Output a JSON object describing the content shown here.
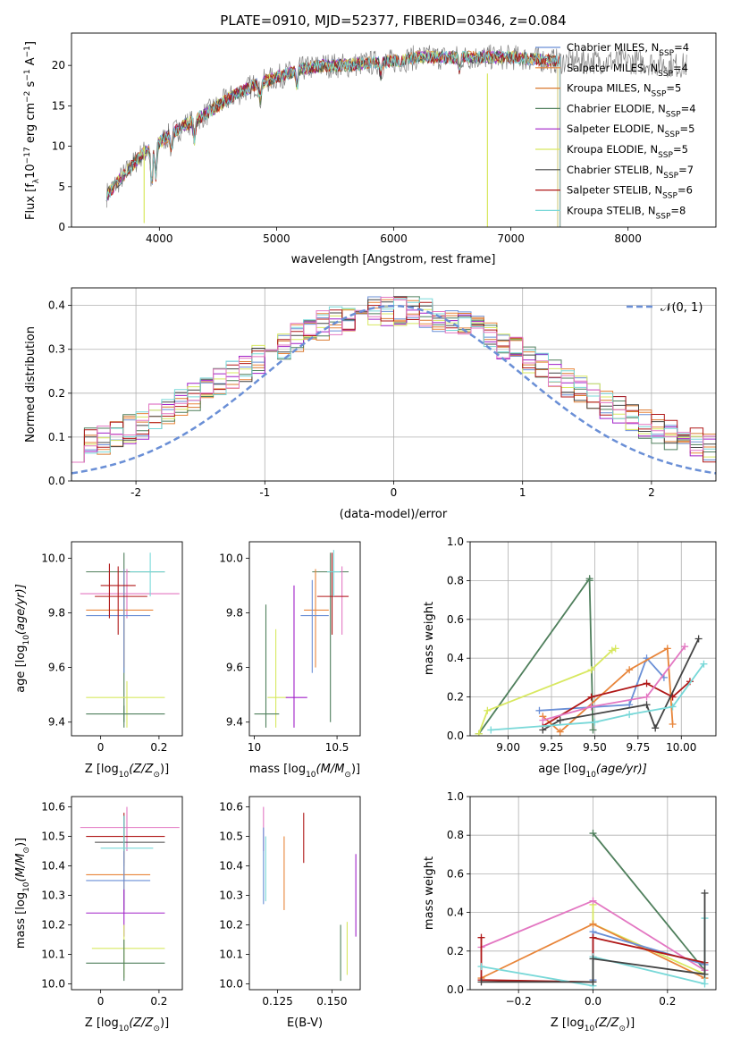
{
  "colors": {
    "chabrier_miles": "#6a8fd6",
    "salpeter_miles": "#e8853a",
    "kroupa_miles": "#d97a30",
    "chabrier_elodie": "#4f7f5c",
    "salpeter_elodie": "#a020c8",
    "kroupa_elodie": "#d8e860",
    "chabrier_stelib": "#444444",
    "salpeter_stelib": "#b01818",
    "kroupa_stelib": "#78d8d8",
    "data_spectrum": "#808080",
    "pink": "#e377c2",
    "normal_curve": "#6a8fd6"
  },
  "chart_data": [
    {
      "type": "line",
      "title": "PLATE=0910, MJD=52377, FIBERID=0346, z=0.084",
      "xlabel": "wavelength [Angstrom, rest frame]",
      "ylabel_parts": [
        "Flux [f",
        "λ",
        "10",
        "−17",
        " erg cm",
        "−2",
        " s",
        "−1",
        " A",
        "−1",
        "]"
      ],
      "xlim": [
        3250,
        8750
      ],
      "ylim": [
        0,
        24
      ],
      "xticks": [
        4000,
        5000,
        6000,
        7000,
        8000
      ],
      "yticks": [
        0,
        5,
        10,
        15,
        20
      ],
      "legend_position": "right",
      "legend": [
        {
          "name": "Chabrier MILES, N",
          "sub": "SSP",
          "tail": "=4",
          "color_key": "chabrier_miles"
        },
        {
          "name": "Salpeter MILES, N",
          "sub": "SSP",
          "tail": "=4",
          "color_key": "salpeter_miles"
        },
        {
          "name": "Kroupa MILES, N",
          "sub": "SSP",
          "tail": "=5",
          "color_key": "kroupa_miles"
        },
        {
          "name": "Chabrier ELODIE, N",
          "sub": "SSP",
          "tail": "=4",
          "color_key": "chabrier_elodie"
        },
        {
          "name": "Salpeter ELODIE, N",
          "sub": "SSP",
          "tail": "=5",
          "color_key": "salpeter_elodie"
        },
        {
          "name": "Kroupa ELODIE, N",
          "sub": "SSP",
          "tail": "=5",
          "color_key": "kroupa_elodie"
        },
        {
          "name": "Chabrier STELIB, N",
          "sub": "SSP",
          "tail": "=7",
          "color_key": "chabrier_stelib"
        },
        {
          "name": "Salpeter STELIB, N",
          "sub": "SSP",
          "tail": "=6",
          "color_key": "salpeter_stelib"
        },
        {
          "name": "Kroupa STELIB, N",
          "sub": "SSP",
          "tail": "=8",
          "color_key": "kroupa_stelib"
        }
      ],
      "continuum": [
        [
          3550,
          4
        ],
        [
          3700,
          6.5
        ],
        [
          3850,
          9
        ],
        [
          4000,
          10.5
        ],
        [
          4200,
          12.5
        ],
        [
          4400,
          14
        ],
        [
          4600,
          16
        ],
        [
          4800,
          17.5
        ],
        [
          5000,
          18.5
        ],
        [
          5200,
          19.5
        ],
        [
          5400,
          20
        ],
        [
          5600,
          20
        ],
        [
          5800,
          20.3
        ],
        [
          6000,
          20.5
        ],
        [
          6200,
          21
        ],
        [
          6400,
          21
        ],
        [
          6600,
          21
        ],
        [
          6800,
          21
        ],
        [
          7000,
          21
        ],
        [
          7200,
          20.8
        ],
        [
          7400,
          20.5
        ],
        [
          7600,
          20.5
        ],
        [
          7800,
          20.5
        ],
        [
          8000,
          20.5
        ],
        [
          8200,
          20.3
        ],
        [
          8400,
          20
        ]
      ]
    },
    {
      "type": "step",
      "xlabel": "(data-model)/error",
      "ylabel": "Normed distribution",
      "xlim": [
        -2.5,
        2.5
      ],
      "ylim": [
        0,
        0.44
      ],
      "xticks": [
        -2,
        -1,
        0,
        1,
        2
      ],
      "yticks": [
        0.0,
        0.1,
        0.2,
        0.3,
        0.4
      ],
      "grid": true,
      "legend_label": "𝒩(0, 1)",
      "legend_position": "top-right",
      "bin_width": 0.1
    },
    {
      "type": "errorbar",
      "xlabel_parts": [
        "Z [log",
        "10",
        "(Z/Z",
        "⊙",
        ")]"
      ],
      "ylabel_parts": [
        "age  [log",
        "10",
        "(age/yr)]"
      ],
      "xlim": [
        -0.1,
        0.28
      ],
      "ylim": [
        9.35,
        10.06
      ],
      "xticks": [
        0.0,
        0.2
      ],
      "yticks": [
        9.4,
        9.6,
        9.8,
        10.0
      ],
      "points": [
        {
          "x": 0.08,
          "xl": -0.05,
          "xh": 0.22,
          "y": 9.95,
          "yl": 9.4,
          "yh": 10.02,
          "color_key": "chabrier_elodie"
        },
        {
          "x": 0.09,
          "xl": -0.05,
          "xh": 0.22,
          "y": 9.49,
          "yl": 9.38,
          "yh": 9.55,
          "color_key": "kroupa_elodie"
        },
        {
          "x": 0.08,
          "xl": -0.05,
          "xh": 0.22,
          "y": 9.43,
          "yl": 9.38,
          "yh": 9.46,
          "color_key": "chabrier_elodie"
        },
        {
          "x": 0.09,
          "xl": -0.07,
          "xh": 0.27,
          "y": 9.87,
          "yl": 9.78,
          "yh": 9.96,
          "color_key": "pink"
        },
        {
          "x": 0.08,
          "xl": -0.05,
          "xh": 0.18,
          "y": 9.81,
          "yl": 9.6,
          "yh": 9.96,
          "color_key": "salpeter_miles"
        },
        {
          "x": 0.08,
          "xl": -0.05,
          "xh": 0.17,
          "y": 9.79,
          "yl": 9.58,
          "yh": 9.96,
          "color_key": "chabrier_miles"
        },
        {
          "x": 0.06,
          "xl": -0.02,
          "xh": 0.16,
          "y": 9.86,
          "yl": 9.72,
          "yh": 9.97,
          "color_key": "salpeter_stelib"
        },
        {
          "x": 0.17,
          "xl": 0.1,
          "xh": 0.22,
          "y": 9.95,
          "yl": 9.86,
          "yh": 10.02,
          "color_key": "kroupa_stelib"
        },
        {
          "x": 0.03,
          "xl": 0.0,
          "xh": 0.12,
          "y": 9.9,
          "yl": 9.78,
          "yh": 9.98,
          "color_key": "salpeter_stelib"
        }
      ]
    },
    {
      "type": "errorbar",
      "xlabel_parts": [
        "mass [log",
        "10",
        "(M/M",
        "⊙",
        ")]"
      ],
      "xlim": [
        9.97,
        10.64
      ],
      "ylim": [
        9.35,
        10.06
      ],
      "xticks": [
        10.0,
        10.5
      ],
      "yticks": [
        9.4,
        9.6,
        9.8,
        10.0
      ],
      "points": [
        {
          "x": 10.46,
          "xl": 10.35,
          "xh": 10.57,
          "y": 9.95,
          "yl": 9.4,
          "yh": 10.02,
          "color_key": "chabrier_elodie"
        },
        {
          "x": 10.13,
          "xl": 10.08,
          "xh": 10.2,
          "y": 9.49,
          "yl": 9.38,
          "yh": 9.74,
          "color_key": "kroupa_elodie"
        },
        {
          "x": 10.07,
          "xl": 10.0,
          "xh": 10.15,
          "y": 9.43,
          "yl": 9.38,
          "yh": 9.83,
          "color_key": "chabrier_elodie"
        },
        {
          "x": 10.24,
          "xl": 10.19,
          "xh": 10.32,
          "y": 9.49,
          "yl": 9.38,
          "yh": 9.9,
          "color_key": "salpeter_elodie"
        },
        {
          "x": 10.37,
          "xl": 10.3,
          "xh": 10.45,
          "y": 9.81,
          "yl": 9.6,
          "yh": 9.96,
          "color_key": "salpeter_miles"
        },
        {
          "x": 10.35,
          "xl": 10.28,
          "xh": 10.45,
          "y": 9.79,
          "yl": 9.58,
          "yh": 9.92,
          "color_key": "chabrier_miles"
        },
        {
          "x": 10.53,
          "xl": 10.48,
          "xh": 10.57,
          "y": 9.86,
          "yl": 9.72,
          "yh": 9.97,
          "color_key": "pink"
        },
        {
          "x": 10.47,
          "xl": 10.38,
          "xh": 10.57,
          "y": 9.86,
          "yl": 9.72,
          "yh": 10.02,
          "color_key": "salpeter_stelib"
        },
        {
          "x": 10.48,
          "xl": 10.44,
          "xh": 10.52,
          "y": 9.95,
          "yl": 9.86,
          "yh": 10.03,
          "color_key": "kroupa_stelib"
        }
      ]
    },
    {
      "type": "line",
      "xlabel_parts": [
        "age  [log",
        "10",
        "(age/yr)]"
      ],
      "ylabel": "mass weight",
      "xlim": [
        8.78,
        10.2
      ],
      "ylim": [
        0,
        1.0
      ],
      "xticks": [
        9.0,
        9.25,
        9.5,
        9.75,
        10.0
      ],
      "xtick_labels": [
        "9.00",
        "9.25",
        "9.50",
        "9.75",
        "10.00"
      ],
      "yticks": [
        0.0,
        0.2,
        0.4,
        0.6,
        0.8,
        1.0
      ],
      "grid": true,
      "series": [
        {
          "color_key": "chabrier_elodie",
          "x": [
            8.83,
            9.47,
            9.47,
            9.49
          ],
          "y": [
            0.01,
            0.81,
            0.8,
            0.03
          ]
        },
        {
          "color_key": "kroupa_elodie",
          "x": [
            8.83,
            8.88,
            9.48,
            9.6,
            9.62
          ],
          "y": [
            0.01,
            0.13,
            0.34,
            0.44,
            0.45
          ]
        },
        {
          "color_key": "chabrier_miles",
          "x": [
            9.18,
            9.7,
            9.8,
            9.9
          ],
          "y": [
            0.13,
            0.16,
            0.4,
            0.3
          ]
        },
        {
          "color_key": "salpeter_miles",
          "x": [
            9.2,
            9.3,
            9.7,
            9.92,
            9.95
          ],
          "y": [
            0.1,
            0.02,
            0.34,
            0.45,
            0.06
          ]
        },
        {
          "color_key": "salpeter_stelib",
          "x": [
            9.2,
            9.48,
            9.8,
            9.95,
            10.05
          ],
          "y": [
            0.05,
            0.2,
            0.27,
            0.2,
            0.28
          ]
        },
        {
          "color_key": "chabrier_stelib",
          "x": [
            9.2,
            9.3,
            9.8,
            9.85,
            10.1
          ],
          "y": [
            0.03,
            0.08,
            0.16,
            0.04,
            0.5
          ]
        },
        {
          "color_key": "kroupa_stelib",
          "x": [
            8.9,
            9.5,
            9.7,
            9.95,
            10.13
          ],
          "y": [
            0.03,
            0.07,
            0.11,
            0.15,
            0.37
          ]
        },
        {
          "color_key": "pink",
          "x": [
            9.2,
            9.48,
            9.8,
            10.02
          ],
          "y": [
            0.08,
            0.15,
            0.2,
            0.46
          ]
        }
      ]
    },
    {
      "type": "errorbar",
      "xlabel_parts": [
        "Z [log",
        "10",
        "(Z/Z",
        "⊙",
        ")]"
      ],
      "ylabel_parts": [
        "mass [log",
        "10",
        "(M/M",
        "⊙",
        ")]"
      ],
      "xlim": [
        -0.1,
        0.28
      ],
      "ylim": [
        9.98,
        10.635
      ],
      "xticks": [
        0.0,
        0.2
      ],
      "yticks": [
        10.0,
        10.1,
        10.2,
        10.3,
        10.4,
        10.5,
        10.6
      ],
      "points": [
        {
          "x": 0.09,
          "xl": -0.07,
          "xh": 0.27,
          "y": 10.53,
          "yl": 10.45,
          "yh": 10.6,
          "color_key": "pink"
        },
        {
          "x": 0.08,
          "xl": -0.05,
          "xh": 0.22,
          "y": 10.5,
          "yl": 10.41,
          "yh": 10.58,
          "color_key": "salpeter_stelib"
        },
        {
          "x": 0.08,
          "xl": -0.02,
          "xh": 0.22,
          "y": 10.48,
          "yl": 10.4,
          "yh": 10.57,
          "color_key": "chabrier_stelib"
        },
        {
          "x": 0.08,
          "xl": 0.0,
          "xh": 0.18,
          "y": 10.46,
          "yl": 10.35,
          "yh": 10.57,
          "color_key": "kroupa_stelib"
        },
        {
          "x": 0.08,
          "xl": -0.05,
          "xh": 0.17,
          "y": 10.37,
          "yl": 10.25,
          "yh": 10.45,
          "color_key": "salpeter_miles"
        },
        {
          "x": 0.08,
          "xl": -0.05,
          "xh": 0.17,
          "y": 10.35,
          "yl": 10.25,
          "yh": 10.45,
          "color_key": "chabrier_miles"
        },
        {
          "x": 0.08,
          "xl": -0.05,
          "xh": 0.22,
          "y": 10.24,
          "yl": 10.16,
          "yh": 10.32,
          "color_key": "salpeter_elodie"
        },
        {
          "x": 0.08,
          "xl": -0.03,
          "xh": 0.22,
          "y": 10.12,
          "yl": 10.02,
          "yh": 10.2,
          "color_key": "kroupa_elodie"
        },
        {
          "x": 0.08,
          "xl": -0.05,
          "xh": 0.22,
          "y": 10.07,
          "yl": 10.01,
          "yh": 10.15,
          "color_key": "chabrier_elodie"
        }
      ]
    },
    {
      "type": "errorbar",
      "xlabel": "E(B-V)",
      "xlim": [
        0.112,
        0.163
      ],
      "ylim": [
        9.98,
        10.635
      ],
      "xticks": [
        0.125,
        0.15
      ],
      "xtick_labels": [
        "0.125",
        "0.150"
      ],
      "yticks": [
        10.0,
        10.1,
        10.2,
        10.3,
        10.4,
        10.5,
        10.6
      ],
      "points": [
        {
          "x": 0.1185,
          "yl": 10.45,
          "yh": 10.6,
          "color_key": "pink"
        },
        {
          "x": 0.1185,
          "yl": 10.27,
          "yh": 10.53,
          "color_key": "chabrier_miles"
        },
        {
          "x": 0.1195,
          "yl": 10.28,
          "yh": 10.5,
          "color_key": "kroupa_stelib"
        },
        {
          "x": 0.128,
          "yl": 10.25,
          "yh": 10.5,
          "color_key": "salpeter_miles"
        },
        {
          "x": 0.137,
          "yl": 10.41,
          "yh": 10.58,
          "color_key": "salpeter_stelib"
        },
        {
          "x": 0.154,
          "yl": 10.01,
          "yh": 10.2,
          "color_key": "chabrier_elodie"
        },
        {
          "x": 0.157,
          "yl": 10.03,
          "yh": 10.21,
          "color_key": "kroupa_elodie"
        },
        {
          "x": 0.161,
          "yl": 10.16,
          "yh": 10.44,
          "color_key": "salpeter_elodie"
        }
      ]
    },
    {
      "type": "line",
      "xlabel_parts": [
        "Z [log",
        "10",
        "(Z/Z",
        "⊙",
        ")]"
      ],
      "ylabel": "mass weight",
      "xlim": [
        -0.33,
        0.33
      ],
      "ylim": [
        0,
        1.0
      ],
      "xticks": [
        -0.2,
        0.0,
        0.2
      ],
      "xtick_labels": [
        "−0.2",
        "0.0",
        "0.2"
      ],
      "yticks": [
        0.0,
        0.2,
        0.4,
        0.6,
        0.8,
        1.0
      ],
      "grid": true,
      "series": [
        {
          "color_key": "chabrier_elodie",
          "x": [
            0.0,
            0.3
          ],
          "y": [
            0.81,
            0.1
          ]
        },
        {
          "color_key": "kroupa_elodie",
          "x": [
            0.0,
            0.0,
            0.3
          ],
          "y": [
            0.44,
            0.34,
            0.08
          ]
        },
        {
          "color_key": "pink",
          "x": [
            -0.3,
            0.0,
            0.3
          ],
          "y": [
            0.22,
            0.46,
            0.1
          ]
        },
        {
          "color_key": "salpeter_miles",
          "x": [
            -0.3,
            0.0,
            0.3
          ],
          "y": [
            0.06,
            0.34,
            0.06
          ]
        },
        {
          "color_key": "chabrier_miles",
          "x": [
            0.0,
            0.0,
            0.3
          ],
          "y": [
            0.05,
            0.3,
            0.13
          ]
        },
        {
          "color_key": "salpeter_stelib",
          "x": [
            -0.3,
            -0.3,
            0.0,
            0.0,
            0.3
          ],
          "y": [
            0.27,
            0.05,
            0.04,
            0.27,
            0.14
          ]
        },
        {
          "color_key": "kroupa_stelib",
          "x": [
            -0.3,
            0.0,
            0.0,
            0.3,
            0.3
          ],
          "y": [
            0.12,
            0.02,
            0.17,
            0.03,
            0.37
          ]
        },
        {
          "color_key": "chabrier_stelib",
          "x": [
            -0.3,
            0.0,
            0.0,
            0.3,
            0.3
          ],
          "y": [
            0.04,
            0.04,
            0.16,
            0.08,
            0.5
          ]
        }
      ]
    }
  ]
}
